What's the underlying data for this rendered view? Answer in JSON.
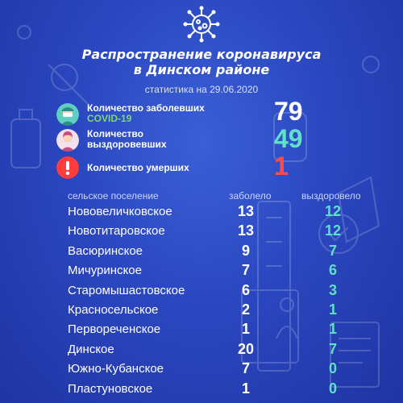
{
  "header": {
    "title_line1": "Распространение коронавируса",
    "title_line2": "в Динском районе",
    "subtitle": "статистика на 29.06.2020"
  },
  "stats": [
    {
      "label_line1": "Количество заболевших",
      "label_line2": "COVID-19",
      "value": "79",
      "icon": "doctor-mask-icon",
      "value_color": "#ffffff"
    },
    {
      "label_line1": "Количество",
      "label_line2": "выздоровевших",
      "value": "49",
      "icon": "recovered-person-icon",
      "value_color": "#5fe0c8"
    },
    {
      "label_line1": "Количество умерших",
      "label_line2": "",
      "value": "1",
      "icon": "exclamation-icon",
      "value_color": "#ff4b4b"
    }
  ],
  "table": {
    "headers": [
      "сельское поселение",
      "заболело",
      "выздоровело"
    ],
    "rows": [
      {
        "name": "Нововеличковское",
        "sick": "13",
        "recovered": "12"
      },
      {
        "name": "Новотитаровское",
        "sick": "13",
        "recovered": "12"
      },
      {
        "name": "Васюринское",
        "sick": "9",
        "recovered": "7"
      },
      {
        "name": "Мичуринское",
        "sick": "7",
        "recovered": "6"
      },
      {
        "name": "Старомышастовское",
        "sick": "6",
        "recovered": "3"
      },
      {
        "name": "Красносельское",
        "sick": "2",
        "recovered": "1"
      },
      {
        "name": "Первореченское",
        "sick": "1",
        "recovered": "1"
      },
      {
        "name": "Динское",
        "sick": "20",
        "recovered": "7"
      },
      {
        "name": "Южно-Кубанское",
        "sick": "7",
        "recovered": "0"
      },
      {
        "name": "Пластуновское",
        "sick": "1",
        "recovered": "0"
      }
    ]
  },
  "colors": {
    "accent_teal": "#5fe0c8",
    "label_green": "#7dd67a",
    "alert_red": "#ff4b4b"
  }
}
